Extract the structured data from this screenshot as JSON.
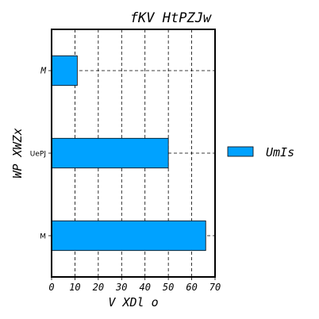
{
  "chart_data": {
    "type": "bar",
    "orientation": "horizontal",
    "title": "fKV HtPZJw",
    "xlabel": "V  XDl o",
    "ylabel": "WP XWZx",
    "categories": [
      "M",
      "UePJ",
      "M"
    ],
    "series": [
      {
        "name": "UmIs",
        "values": [
          66,
          50,
          11
        ],
        "color": "#00a2ff"
      }
    ],
    "xlim": [
      0,
      70
    ],
    "xticks": [
      "0",
      "10",
      "20",
      "30",
      "40",
      "50",
      "60",
      "70"
    ],
    "grid": true,
    "grid_style": "dashed",
    "legend_position": "right"
  }
}
